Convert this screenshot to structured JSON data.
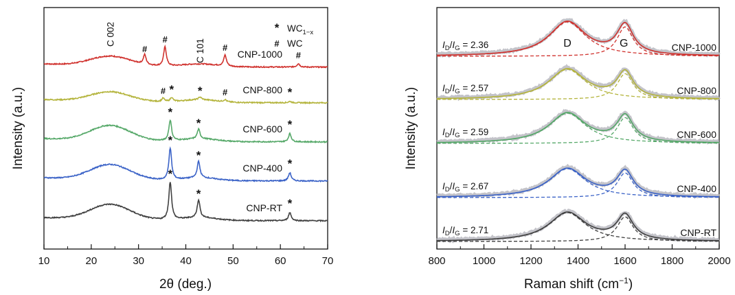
{
  "chart_data": [
    {
      "type": "line",
      "panel": "left",
      "xlabel": "2θ (deg.)",
      "ylabel": "Intensity (a.u.)",
      "xlim": [
        10,
        70
      ],
      "xticks": [
        "10",
        "20",
        "30",
        "40",
        "50",
        "60",
        "70"
      ],
      "y_ticks_shown": false,
      "legend": {
        "placement": "top-right",
        "entries": [
          {
            "marker": "*",
            "label": "WC",
            "subscript": "1−x"
          },
          {
            "marker": "#",
            "label": "WC"
          }
        ]
      },
      "annotations": [
        {
          "text": "C 002",
          "x": 24
        },
        {
          "text": "C 101",
          "x": 43
        }
      ],
      "series": [
        {
          "name": "CNP-1000",
          "color": "#d0312d",
          "peaks": [
            {
              "x": 31.3,
              "marker": "#"
            },
            {
              "x": 35.6,
              "marker": "#"
            },
            {
              "x": 48.3,
              "marker": "#"
            },
            {
              "x": 63.8,
              "marker": "#"
            }
          ]
        },
        {
          "name": "CNP-800",
          "color": "#b4b43c",
          "peaks": [
            {
              "x": 35.2,
              "marker": "#"
            },
            {
              "x": 37.0,
              "marker": "*"
            },
            {
              "x": 43.0,
              "marker": "*"
            },
            {
              "x": 48.3,
              "marker": "#"
            },
            {
              "x": 62.0,
              "marker": "*"
            }
          ]
        },
        {
          "name": "CNP-600",
          "color": "#55a868",
          "peaks": [
            {
              "x": 36.7,
              "marker": "*"
            },
            {
              "x": 42.7,
              "marker": "*"
            },
            {
              "x": 62.0,
              "marker": "*"
            }
          ]
        },
        {
          "name": "CNP-400",
          "color": "#3a62c7",
          "peaks": [
            {
              "x": 36.7,
              "marker": "*"
            },
            {
              "x": 42.7,
              "marker": "*"
            },
            {
              "x": 62.0,
              "marker": "*"
            }
          ]
        },
        {
          "name": "CNP-RT",
          "color": "#3f3f3f",
          "peaks": [
            {
              "x": 36.7,
              "marker": "*"
            },
            {
              "x": 42.7,
              "marker": "*"
            },
            {
              "x": 62.0,
              "marker": "*"
            }
          ]
        }
      ]
    },
    {
      "type": "line",
      "panel": "right",
      "xlabel": "Raman shift (cm⁻¹)",
      "ylabel": "Intensity (a.u.)",
      "xlim": [
        800,
        2000
      ],
      "xticks": [
        "800",
        "1000",
        "1200",
        "1400",
        "1600",
        "1800",
        "2000"
      ],
      "y_ticks_shown": false,
      "band_labels": [
        {
          "text": "D",
          "x": 1355
        },
        {
          "text": "G",
          "x": 1595
        }
      ],
      "band_centers": {
        "D": 1355,
        "G": 1600
      },
      "series": [
        {
          "name": "CNP-1000",
          "color": "#d0312d",
          "ratio_label": "ID/IG = 2.36",
          "ratio": 2.36
        },
        {
          "name": "CNP-800",
          "color": "#b4b43c",
          "ratio_label": "ID/IG = 2.57",
          "ratio": 2.57
        },
        {
          "name": "CNP-600",
          "color": "#55a868",
          "ratio_label": "ID/IG = 2.59",
          "ratio": 2.59
        },
        {
          "name": "CNP-400",
          "color": "#3a62c7",
          "ratio_label": "ID/IG = 2.67",
          "ratio": 2.67
        },
        {
          "name": "CNP-RT",
          "color": "#3f3f3f",
          "ratio_label": "ID/IG = 2.71",
          "ratio": 2.71
        }
      ]
    }
  ]
}
